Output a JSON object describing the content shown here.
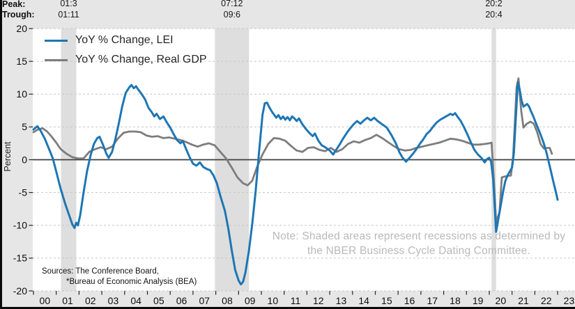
{
  "header": {
    "peak_label": "Peak:",
    "trough_label": "Trough:"
  },
  "note": {
    "line1": "Note: Shaded areas represent recessions as determined by",
    "line2": "the NBER Business Cycle Dating Committee."
  },
  "sources": {
    "line1": "Sources: The Conference Board,",
    "line2": "*Bureau of Economic Analysis (BEA)"
  },
  "colors": {
    "background": "#e6e6e6",
    "plot_background": "#ffffff",
    "recession_band": "#dedede",
    "gridline": "#c6c6c6",
    "zero_line": "#3d3d3d",
    "tick": "#222222",
    "note_text": "#b9b9b9",
    "lei_blue": "#1e76b4",
    "gdp_gray": "#7d7d7d"
  },
  "chart_data": {
    "type": "line",
    "ylabel": "Percent",
    "ylim": [
      -20,
      20
    ],
    "y_ticks": [
      -20,
      -15,
      -10,
      -5,
      0,
      5,
      10,
      15,
      20
    ],
    "x_tick_labels": [
      "00",
      "01",
      "02",
      "03",
      "04",
      "05",
      "06",
      "07",
      "08",
      "09",
      "10",
      "11",
      "12",
      "13",
      "14",
      "15",
      "16",
      "17",
      "18",
      "19",
      "20",
      "21",
      "22",
      "23"
    ],
    "x_base_year": 2000,
    "grid": "horizontal-dashed",
    "legend_position": "top-left",
    "legend": [
      {
        "label": "YoY % Change, LEI",
        "color": "#1e76b4"
      },
      {
        "label": "YoY % Change, Real GDP",
        "color": "#7d7d7d"
      }
    ],
    "recessions": [
      {
        "peak_label": "01:3",
        "trough_label": "01:11",
        "start": 1.21,
        "end": 1.88
      },
      {
        "peak_label": "07:12",
        "trough_label": "09:6",
        "start": 7.96,
        "end": 9.46
      },
      {
        "peak_label": "20:2",
        "trough_label": "20:4",
        "start": 20.1,
        "end": 20.3
      }
    ],
    "series": [
      {
        "name": "YoY % Change, LEI",
        "color": "#1e76b4",
        "width": 3,
        "points": [
          [
            0,
            4.6
          ],
          [
            0.1,
            4.9
          ],
          [
            0.17,
            5.1
          ],
          [
            0.3,
            4.5
          ],
          [
            0.5,
            3.2
          ],
          [
            0.7,
            1.5
          ],
          [
            0.85,
            0.2
          ],
          [
            1.0,
            -1.8
          ],
          [
            1.2,
            -4.5
          ],
          [
            1.4,
            -6.8
          ],
          [
            1.55,
            -8.3
          ],
          [
            1.7,
            -9.8
          ],
          [
            1.8,
            -10.4
          ],
          [
            1.88,
            -9.6
          ],
          [
            1.95,
            -10.0
          ],
          [
            2.05,
            -8.5
          ],
          [
            2.2,
            -5.0
          ],
          [
            2.35,
            -1.8
          ],
          [
            2.5,
            0.6
          ],
          [
            2.65,
            2.4
          ],
          [
            2.8,
            3.3
          ],
          [
            2.9,
            3.5
          ],
          [
            3.05,
            2.3
          ],
          [
            3.2,
            0.9
          ],
          [
            3.3,
            0.3
          ],
          [
            3.45,
            1.2
          ],
          [
            3.6,
            3.2
          ],
          [
            3.75,
            5.6
          ],
          [
            3.9,
            8.2
          ],
          [
            4.05,
            10.2
          ],
          [
            4.2,
            11.0
          ],
          [
            4.3,
            11.4
          ],
          [
            4.4,
            10.9
          ],
          [
            4.5,
            11.2
          ],
          [
            4.6,
            10.7
          ],
          [
            4.75,
            10.0
          ],
          [
            4.9,
            9.2
          ],
          [
            5.05,
            7.9
          ],
          [
            5.2,
            7.2
          ],
          [
            5.3,
            6.6
          ],
          [
            5.4,
            7.0
          ],
          [
            5.55,
            6.2
          ],
          [
            5.7,
            6.6
          ],
          [
            5.85,
            5.7
          ],
          [
            6.0,
            4.9
          ],
          [
            6.15,
            3.9
          ],
          [
            6.3,
            3.0
          ],
          [
            6.45,
            2.5
          ],
          [
            6.55,
            2.9
          ],
          [
            6.7,
            1.6
          ],
          [
            6.85,
            0.4
          ],
          [
            7.0,
            -0.6
          ],
          [
            7.15,
            -0.9
          ],
          [
            7.3,
            -0.4
          ],
          [
            7.45,
            -1.1
          ],
          [
            7.6,
            -1.4
          ],
          [
            7.75,
            -1.6
          ],
          [
            7.9,
            -2.4
          ],
          [
            8.05,
            -3.6
          ],
          [
            8.2,
            -5.5
          ],
          [
            8.4,
            -7.8
          ],
          [
            8.55,
            -10.5
          ],
          [
            8.7,
            -13.8
          ],
          [
            8.85,
            -16.8
          ],
          [
            9.0,
            -18.4
          ],
          [
            9.1,
            -19.0
          ],
          [
            9.2,
            -18.6
          ],
          [
            9.3,
            -17.2
          ],
          [
            9.45,
            -14.0
          ],
          [
            9.6,
            -9.8
          ],
          [
            9.75,
            -4.8
          ],
          [
            9.9,
            1.2
          ],
          [
            10.05,
            6.8
          ],
          [
            10.15,
            8.6
          ],
          [
            10.25,
            8.7
          ],
          [
            10.35,
            8.0
          ],
          [
            10.45,
            7.4
          ],
          [
            10.55,
            6.9
          ],
          [
            10.65,
            6.4
          ],
          [
            10.75,
            6.8
          ],
          [
            10.85,
            6.2
          ],
          [
            10.95,
            6.6
          ],
          [
            11.05,
            6.1
          ],
          [
            11.15,
            6.5
          ],
          [
            11.25,
            6.0
          ],
          [
            11.35,
            6.6
          ],
          [
            11.45,
            6.3
          ],
          [
            11.55,
            5.9
          ],
          [
            11.65,
            6.3
          ],
          [
            11.8,
            5.4
          ],
          [
            11.95,
            4.7
          ],
          [
            12.1,
            4.1
          ],
          [
            12.25,
            3.6
          ],
          [
            12.35,
            4.0
          ],
          [
            12.5,
            2.9
          ],
          [
            12.65,
            2.2
          ],
          [
            12.8,
            1.9
          ],
          [
            13.0,
            1.4
          ],
          [
            13.15,
            0.8
          ],
          [
            13.3,
            1.6
          ],
          [
            13.45,
            2.4
          ],
          [
            13.6,
            3.3
          ],
          [
            13.75,
            4.1
          ],
          [
            13.9,
            4.8
          ],
          [
            14.05,
            5.4
          ],
          [
            14.2,
            5.9
          ],
          [
            14.35,
            5.5
          ],
          [
            14.5,
            6.0
          ],
          [
            14.65,
            6.4
          ],
          [
            14.8,
            6.0
          ],
          [
            14.95,
            6.4
          ],
          [
            15.1,
            5.9
          ],
          [
            15.3,
            5.4
          ],
          [
            15.5,
            4.9
          ],
          [
            15.7,
            3.8
          ],
          [
            15.9,
            2.5
          ],
          [
            16.05,
            1.2
          ],
          [
            16.2,
            0.3
          ],
          [
            16.35,
            -0.3
          ],
          [
            16.5,
            0.3
          ],
          [
            16.65,
            0.9
          ],
          [
            16.8,
            1.6
          ],
          [
            16.95,
            2.4
          ],
          [
            17.1,
            3.1
          ],
          [
            17.25,
            3.9
          ],
          [
            17.4,
            4.4
          ],
          [
            17.55,
            5.1
          ],
          [
            17.7,
            5.7
          ],
          [
            17.85,
            6.1
          ],
          [
            18.0,
            6.4
          ],
          [
            18.15,
            6.7
          ],
          [
            18.3,
            7.0
          ],
          [
            18.4,
            6.8
          ],
          [
            18.5,
            7.1
          ],
          [
            18.6,
            6.6
          ],
          [
            18.75,
            5.9
          ],
          [
            18.9,
            4.9
          ],
          [
            19.05,
            3.8
          ],
          [
            19.2,
            2.6
          ],
          [
            19.35,
            1.5
          ],
          [
            19.5,
            0.8
          ],
          [
            19.65,
            0.3
          ],
          [
            19.8,
            -0.4
          ],
          [
            19.9,
            0.1
          ],
          [
            20.0,
            0.3
          ],
          [
            20.08,
            -0.3
          ],
          [
            20.17,
            -3.0
          ],
          [
            20.3,
            -11.0
          ],
          [
            20.4,
            -9.0
          ],
          [
            20.5,
            -7.0
          ],
          [
            20.6,
            -5.0
          ],
          [
            20.7,
            -3.3
          ],
          [
            20.8,
            -2.4
          ],
          [
            20.9,
            -1.8
          ],
          [
            21.0,
            -1.2
          ],
          [
            21.08,
            1.0
          ],
          [
            21.16,
            6.0
          ],
          [
            21.25,
            11.8
          ],
          [
            21.33,
            10.8
          ],
          [
            21.42,
            9.0
          ],
          [
            21.5,
            8.1
          ],
          [
            21.58,
            8.3
          ],
          [
            21.66,
            8.5
          ],
          [
            21.75,
            8.1
          ],
          [
            21.83,
            7.4
          ],
          [
            21.92,
            6.7
          ],
          [
            22.0,
            6.0
          ],
          [
            22.1,
            5.1
          ],
          [
            22.2,
            4.3
          ],
          [
            22.3,
            3.4
          ],
          [
            22.4,
            2.4
          ],
          [
            22.5,
            1.2
          ],
          [
            22.6,
            -0.2
          ],
          [
            22.7,
            -1.7
          ],
          [
            22.8,
            -3.2
          ],
          [
            22.9,
            -4.6
          ],
          [
            23.0,
            -6.1
          ]
        ]
      },
      {
        "name": "YoY % Change, Real GDP",
        "color": "#7d7d7d",
        "width": 2.8,
        "points": [
          [
            0,
            4.2
          ],
          [
            0.2,
            4.6
          ],
          [
            0.4,
            4.8
          ],
          [
            0.6,
            4.3
          ],
          [
            0.8,
            3.5
          ],
          [
            1.0,
            2.6
          ],
          [
            1.2,
            1.6
          ],
          [
            1.45,
            0.9
          ],
          [
            1.7,
            0.4
          ],
          [
            1.95,
            0.2
          ],
          [
            2.2,
            0.2
          ],
          [
            2.45,
            1.2
          ],
          [
            2.7,
            1.6
          ],
          [
            2.95,
            1.9
          ],
          [
            3.2,
            1.6
          ],
          [
            3.45,
            2.0
          ],
          [
            3.7,
            3.2
          ],
          [
            3.95,
            4.1
          ],
          [
            4.2,
            4.3
          ],
          [
            4.45,
            4.3
          ],
          [
            4.7,
            4.2
          ],
          [
            4.95,
            3.7
          ],
          [
            5.2,
            3.5
          ],
          [
            5.45,
            3.6
          ],
          [
            5.7,
            3.3
          ],
          [
            5.95,
            3.4
          ],
          [
            6.2,
            3.2
          ],
          [
            6.45,
            3.0
          ],
          [
            6.7,
            2.7
          ],
          [
            6.95,
            2.3
          ],
          [
            7.2,
            2.0
          ],
          [
            7.45,
            2.3
          ],
          [
            7.7,
            2.5
          ],
          [
            7.95,
            2.2
          ],
          [
            8.2,
            1.2
          ],
          [
            8.45,
            0.2
          ],
          [
            8.7,
            -1.2
          ],
          [
            8.95,
            -2.7
          ],
          [
            9.2,
            -3.6
          ],
          [
            9.4,
            -3.9
          ],
          [
            9.6,
            -3.2
          ],
          [
            9.8,
            -1.2
          ],
          [
            10.05,
            0.8
          ],
          [
            10.3,
            2.4
          ],
          [
            10.55,
            3.3
          ],
          [
            10.8,
            3.2
          ],
          [
            11.05,
            2.9
          ],
          [
            11.3,
            2.1
          ],
          [
            11.55,
            1.4
          ],
          [
            11.8,
            1.2
          ],
          [
            12.05,
            1.8
          ],
          [
            12.3,
            1.9
          ],
          [
            12.55,
            1.5
          ],
          [
            12.8,
            1.3
          ],
          [
            13.05,
            1.8
          ],
          [
            13.3,
            1.2
          ],
          [
            13.55,
            1.6
          ],
          [
            13.8,
            2.4
          ],
          [
            14.05,
            2.8
          ],
          [
            14.3,
            2.6
          ],
          [
            14.55,
            3.0
          ],
          [
            14.8,
            3.3
          ],
          [
            15.05,
            3.8
          ],
          [
            15.3,
            3.3
          ],
          [
            15.55,
            2.7
          ],
          [
            15.8,
            2.1
          ],
          [
            16.05,
            1.6
          ],
          [
            16.3,
            1.4
          ],
          [
            16.55,
            1.5
          ],
          [
            16.8,
            1.8
          ],
          [
            17.05,
            2.0
          ],
          [
            17.3,
            2.2
          ],
          [
            17.55,
            2.4
          ],
          [
            17.8,
            2.6
          ],
          [
            18.05,
            2.9
          ],
          [
            18.3,
            3.2
          ],
          [
            18.55,
            3.1
          ],
          [
            18.8,
            2.9
          ],
          [
            19.05,
            2.6
          ],
          [
            19.3,
            2.3
          ],
          [
            19.55,
            2.3
          ],
          [
            19.8,
            2.4
          ],
          [
            20.0,
            2.5
          ],
          [
            20.1,
            2.6
          ],
          [
            20.2,
            -3.0
          ],
          [
            20.3,
            -9.5
          ],
          [
            20.45,
            -8.0
          ],
          [
            20.55,
            -2.7
          ],
          [
            20.75,
            -2.5
          ],
          [
            20.95,
            -2.4
          ],
          [
            21.05,
            0.6
          ],
          [
            21.2,
            11.0
          ],
          [
            21.28,
            12.4
          ],
          [
            21.4,
            7.5
          ],
          [
            21.5,
            4.9
          ],
          [
            21.65,
            5.5
          ],
          [
            21.8,
            5.8
          ],
          [
            21.95,
            5.5
          ],
          [
            22.1,
            4.2
          ],
          [
            22.25,
            2.4
          ],
          [
            22.4,
            1.7
          ],
          [
            22.55,
            1.8
          ],
          [
            22.65,
            1.8
          ],
          [
            22.75,
            0.9
          ]
        ]
      }
    ]
  }
}
